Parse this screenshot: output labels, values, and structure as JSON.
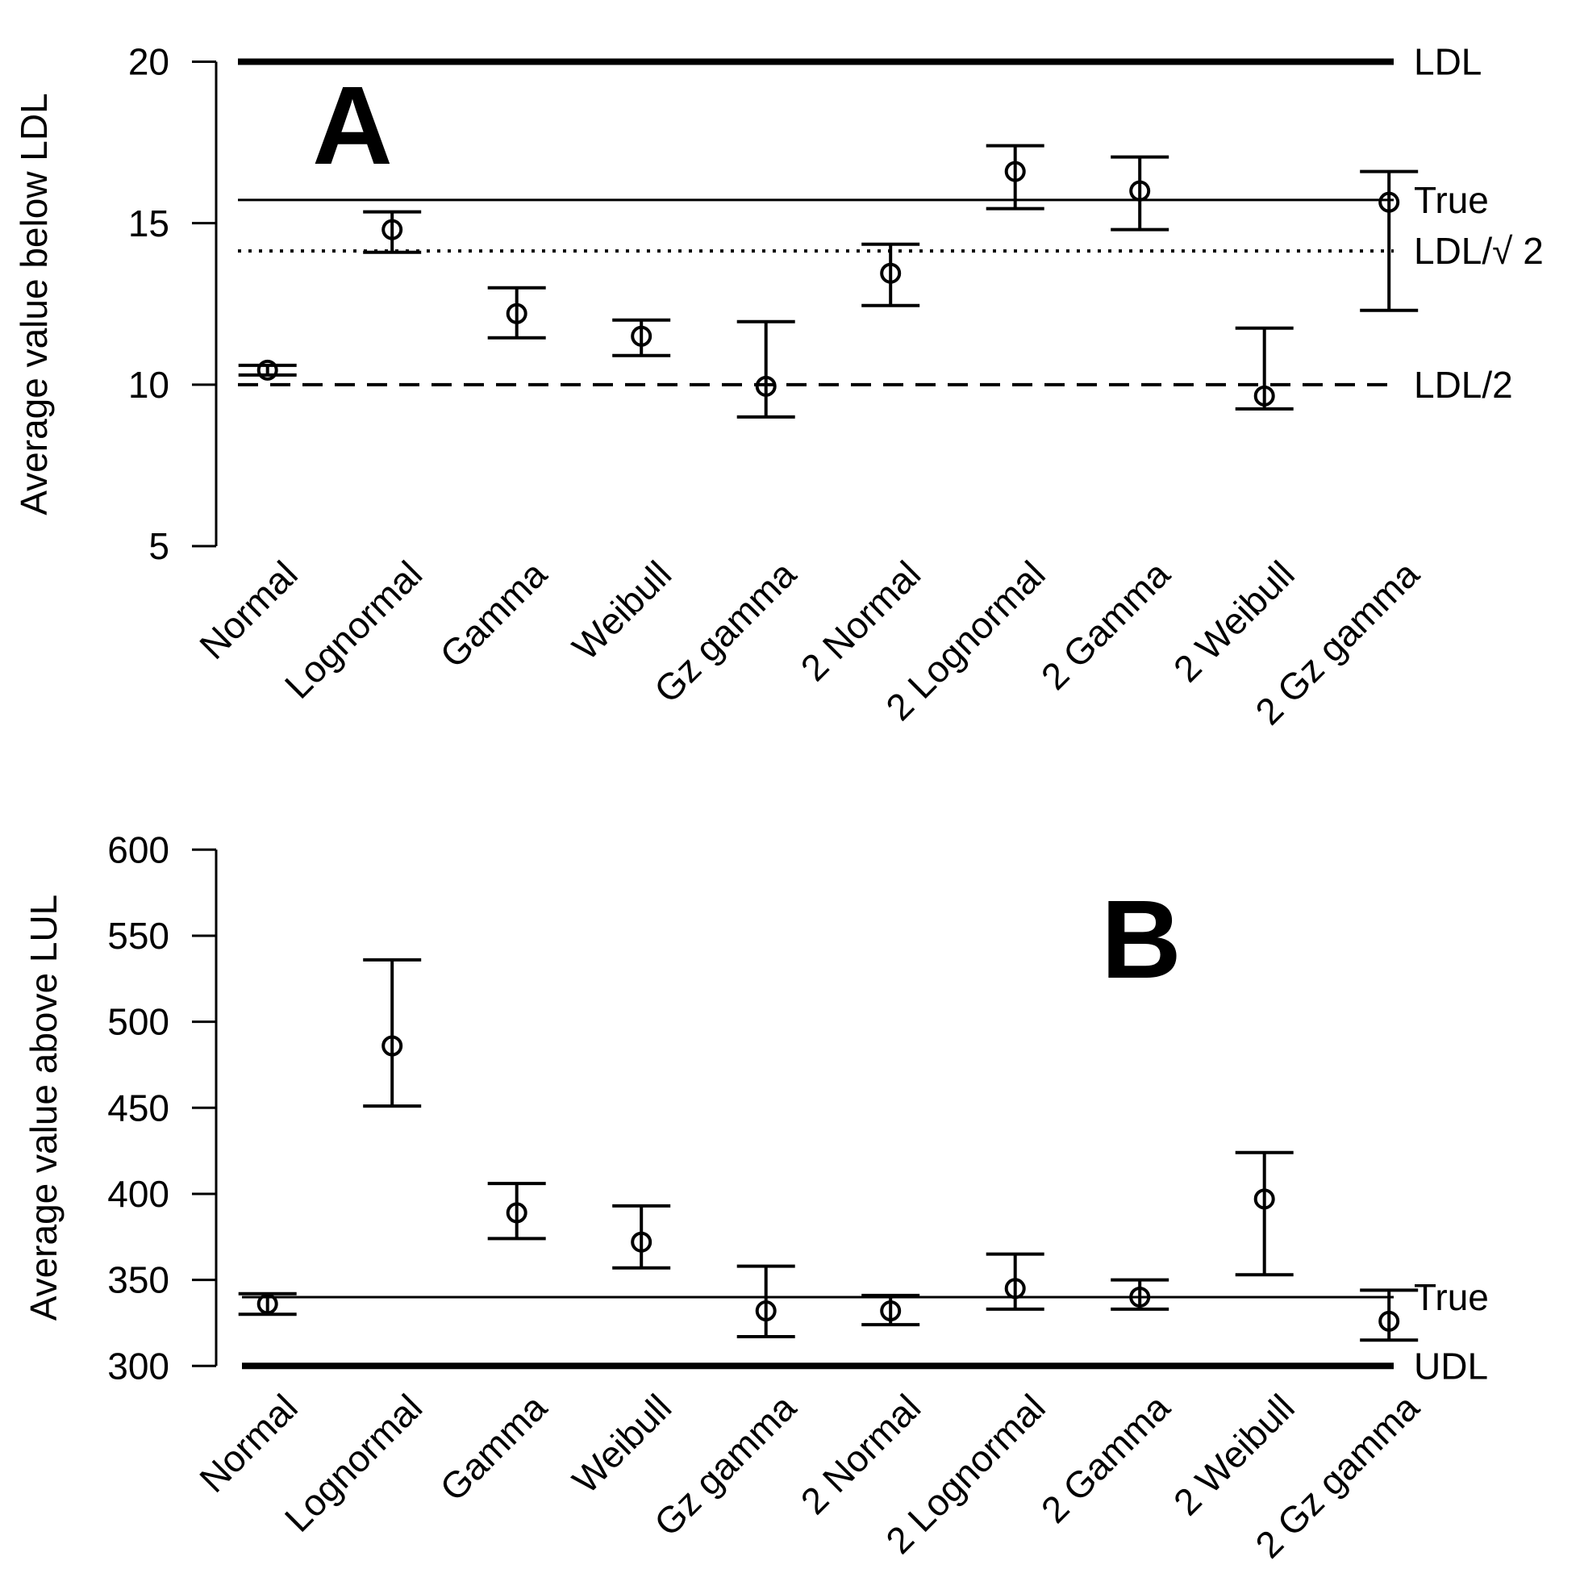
{
  "figure": {
    "background": "#ffffff",
    "ink_color": "#000000"
  },
  "chart_data": [
    {
      "type": "errorbar",
      "panel_label": "A",
      "ylabel": "Average value below LDL",
      "ylim": [
        5,
        20
      ],
      "yticks": [
        20,
        15,
        10,
        5
      ],
      "grid": false,
      "legend_position": "none",
      "categories": [
        "Normal",
        "Lognormal",
        "Gamma",
        "Weibull",
        "Gz gamma",
        "2 Normal",
        "2 Lognormal",
        "2 Gamma",
        "2 Weibull",
        "2 Gz gamma"
      ],
      "series": [
        {
          "name": "mean",
          "values": [
            10.45,
            14.8,
            12.2,
            11.5,
            9.95,
            13.45,
            16.6,
            16.0,
            9.65,
            15.65
          ]
        },
        {
          "name": "ci_low",
          "values": [
            10.3,
            14.1,
            11.45,
            10.9,
            9.0,
            12.45,
            15.45,
            14.8,
            9.25,
            12.3
          ]
        },
        {
          "name": "ci_high",
          "values": [
            10.6,
            15.35,
            13.0,
            12.0,
            11.95,
            14.35,
            17.4,
            17.05,
            11.75,
            16.6
          ]
        }
      ],
      "ref_lines": [
        {
          "label": "LDL",
          "value": 20,
          "style": "solid-thick"
        },
        {
          "label": "True",
          "value": 15.72,
          "style": "solid-thin"
        },
        {
          "label": "LDL/√ 2",
          "value": 14.14,
          "style": "dotted"
        },
        {
          "label": "LDL/2",
          "value": 10,
          "style": "dashed"
        }
      ]
    },
    {
      "type": "errorbar",
      "panel_label": "B",
      "ylabel": "Average value above LUL",
      "ylim": [
        300,
        600
      ],
      "yticks": [
        600,
        550,
        500,
        450,
        400,
        350,
        300
      ],
      "grid": false,
      "legend_position": "none",
      "categories": [
        "Normal",
        "Lognormal",
        "Gamma",
        "Weibull",
        "Gz gamma",
        "2 Normal",
        "2 Lognormal",
        "2 Gamma",
        "2 Weibull",
        "2 Gz gamma"
      ],
      "series": [
        {
          "name": "mean",
          "values": [
            336,
            486,
            389,
            372,
            332,
            332,
            345,
            340,
            397,
            326
          ]
        },
        {
          "name": "ci_low",
          "values": [
            330,
            451,
            374,
            357,
            317,
            324,
            333,
            333,
            353,
            315
          ]
        },
        {
          "name": "ci_high",
          "values": [
            342,
            536,
            406,
            393,
            358,
            341,
            365,
            350,
            424,
            344
          ]
        }
      ],
      "ref_lines": [
        {
          "label": "True",
          "value": 340,
          "style": "solid-thin"
        },
        {
          "label": "UDL",
          "value": 300,
          "style": "solid-thick"
        }
      ]
    }
  ]
}
